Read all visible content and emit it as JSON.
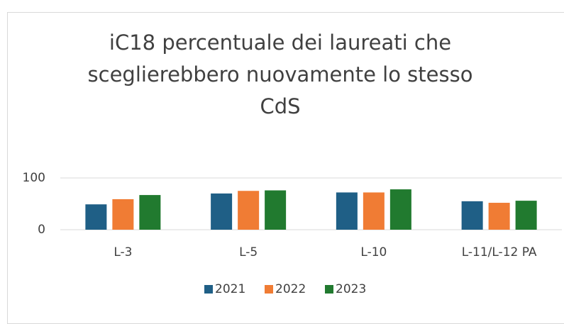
{
  "chart_data": {
    "type": "bar",
    "title": "iC18 percentuale dei laureati che sceglierebbero nuovamente lo stesso CdS",
    "categories": [
      "L-3",
      "L-5",
      "L-10",
      "L-11/L-12 PA"
    ],
    "series": [
      {
        "name": "2021",
        "color": "#1f5f86",
        "values": [
          49,
          70,
          72,
          55
        ]
      },
      {
        "name": "2022",
        "color": "#f07c34",
        "values": [
          59,
          75,
          72,
          52
        ]
      },
      {
        "name": "2023",
        "color": "#217a2f",
        "values": [
          67,
          76,
          78,
          56
        ]
      }
    ],
    "ylim": [
      0,
      100
    ],
    "yticks": [
      0,
      100
    ],
    "grid": true,
    "legend": "bottom"
  }
}
